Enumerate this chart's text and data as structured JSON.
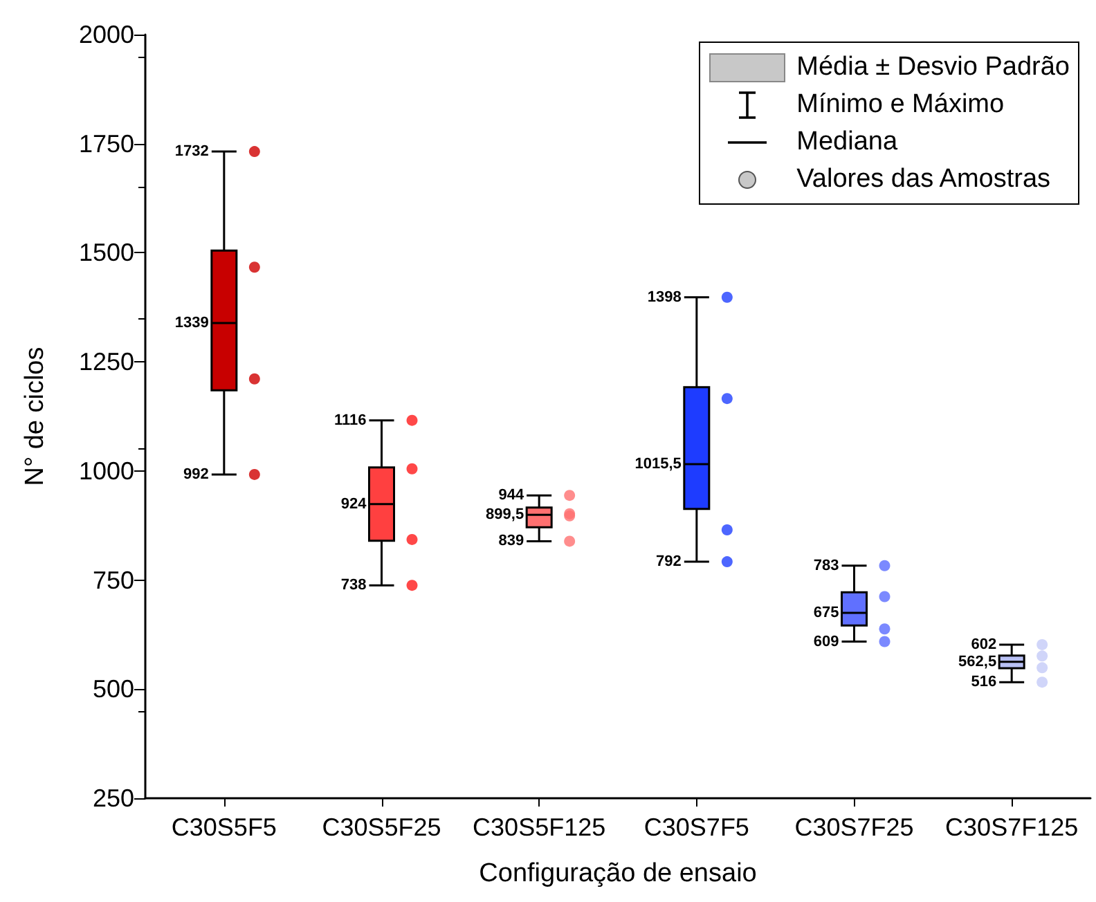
{
  "chart_data": {
    "type": "box",
    "xlabel": "Configuração de ensaio",
    "ylabel": "N° de ciclos",
    "categories": [
      "C30S5F5",
      "C30S5F25",
      "C30S5F125",
      "C30S7F5",
      "C30S7F25",
      "C30S7F125"
    ],
    "ylim": [
      250,
      2000
    ],
    "yticks": [
      250,
      500,
      750,
      1000,
      1250,
      1500,
      1750,
      2000
    ],
    "grid": false,
    "series": [
      {
        "colors": [
          "#c80000",
          "#ff4040",
          "#ff7070",
          "#1e3cff",
          "#6070ff",
          "#b8c0f4"
        ],
        "boxes": [
          {
            "low": 992,
            "q1": 1185,
            "median": 1339,
            "q3": 1505,
            "high": 1732
          },
          {
            "low": 738,
            "q1": 840,
            "median": 924,
            "q3": 1008,
            "high": 1116
          },
          {
            "low": 839,
            "q1": 871,
            "median": 899.5,
            "q3": 916,
            "high": 944
          },
          {
            "low": 792,
            "q1": 913,
            "median": 1015.5,
            "q3": 1192,
            "high": 1398
          },
          {
            "low": 609,
            "q1": 646,
            "median": 675,
            "q3": 722,
            "high": 783
          },
          {
            "low": 516,
            "q1": 548,
            "median": 562.5,
            "q3": 577,
            "high": 602
          }
        ]
      },
      {
        "type": "scatter",
        "marker": "circle",
        "x": [
          "C30S5F5",
          "C30S5F5",
          "C30S5F5",
          "C30S5F5",
          "C30S5F25",
          "C30S5F25",
          "C30S5F25",
          "C30S5F25",
          "C30S5F125",
          "C30S5F125",
          "C30S5F125",
          "C30S5F125",
          "C30S7F5",
          "C30S7F5",
          "C30S7F5",
          "C30S7F5",
          "C30S7F25",
          "C30S7F25",
          "C30S7F25",
          "C30S7F25",
          "C30S7F125",
          "C30S7F125",
          "C30S7F125",
          "C30S7F125"
        ],
        "values": [
          1732,
          1467,
          1211,
          992,
          1116,
          1005,
          843,
          738,
          944,
          902,
          897,
          839,
          1398,
          1166,
          865,
          792,
          783,
          712,
          638,
          609,
          602,
          576,
          549,
          516
        ],
        "colors": [
          "#d00000",
          "#d00000",
          "#d00000",
          "#d00000",
          "#ff1a1a",
          "#ff1a1a",
          "#ff1a1a",
          "#ff1a1a",
          "#ff7070",
          "#ff7070",
          "#ff7070",
          "#ff7070",
          "#2040ff",
          "#2040ff",
          "#2040ff",
          "#2040ff",
          "#5a6cff",
          "#5a6cff",
          "#5a6cff",
          "#5a6cff",
          "#c4caf8",
          "#c4caf8",
          "#c4caf8",
          "#c4caf8"
        ]
      }
    ],
    "annotations": [
      "Média ± Desvio Padrão",
      "Mínimo e Máximo",
      "Mediana",
      "Valores das Amostras",
      "1732",
      "1339",
      "992",
      "1116",
      "924",
      "738",
      "944",
      "899,5",
      "839",
      "1398",
      "1015,5",
      "792",
      "783",
      "675",
      "609",
      "602",
      "562,5",
      "516"
    ]
  }
}
